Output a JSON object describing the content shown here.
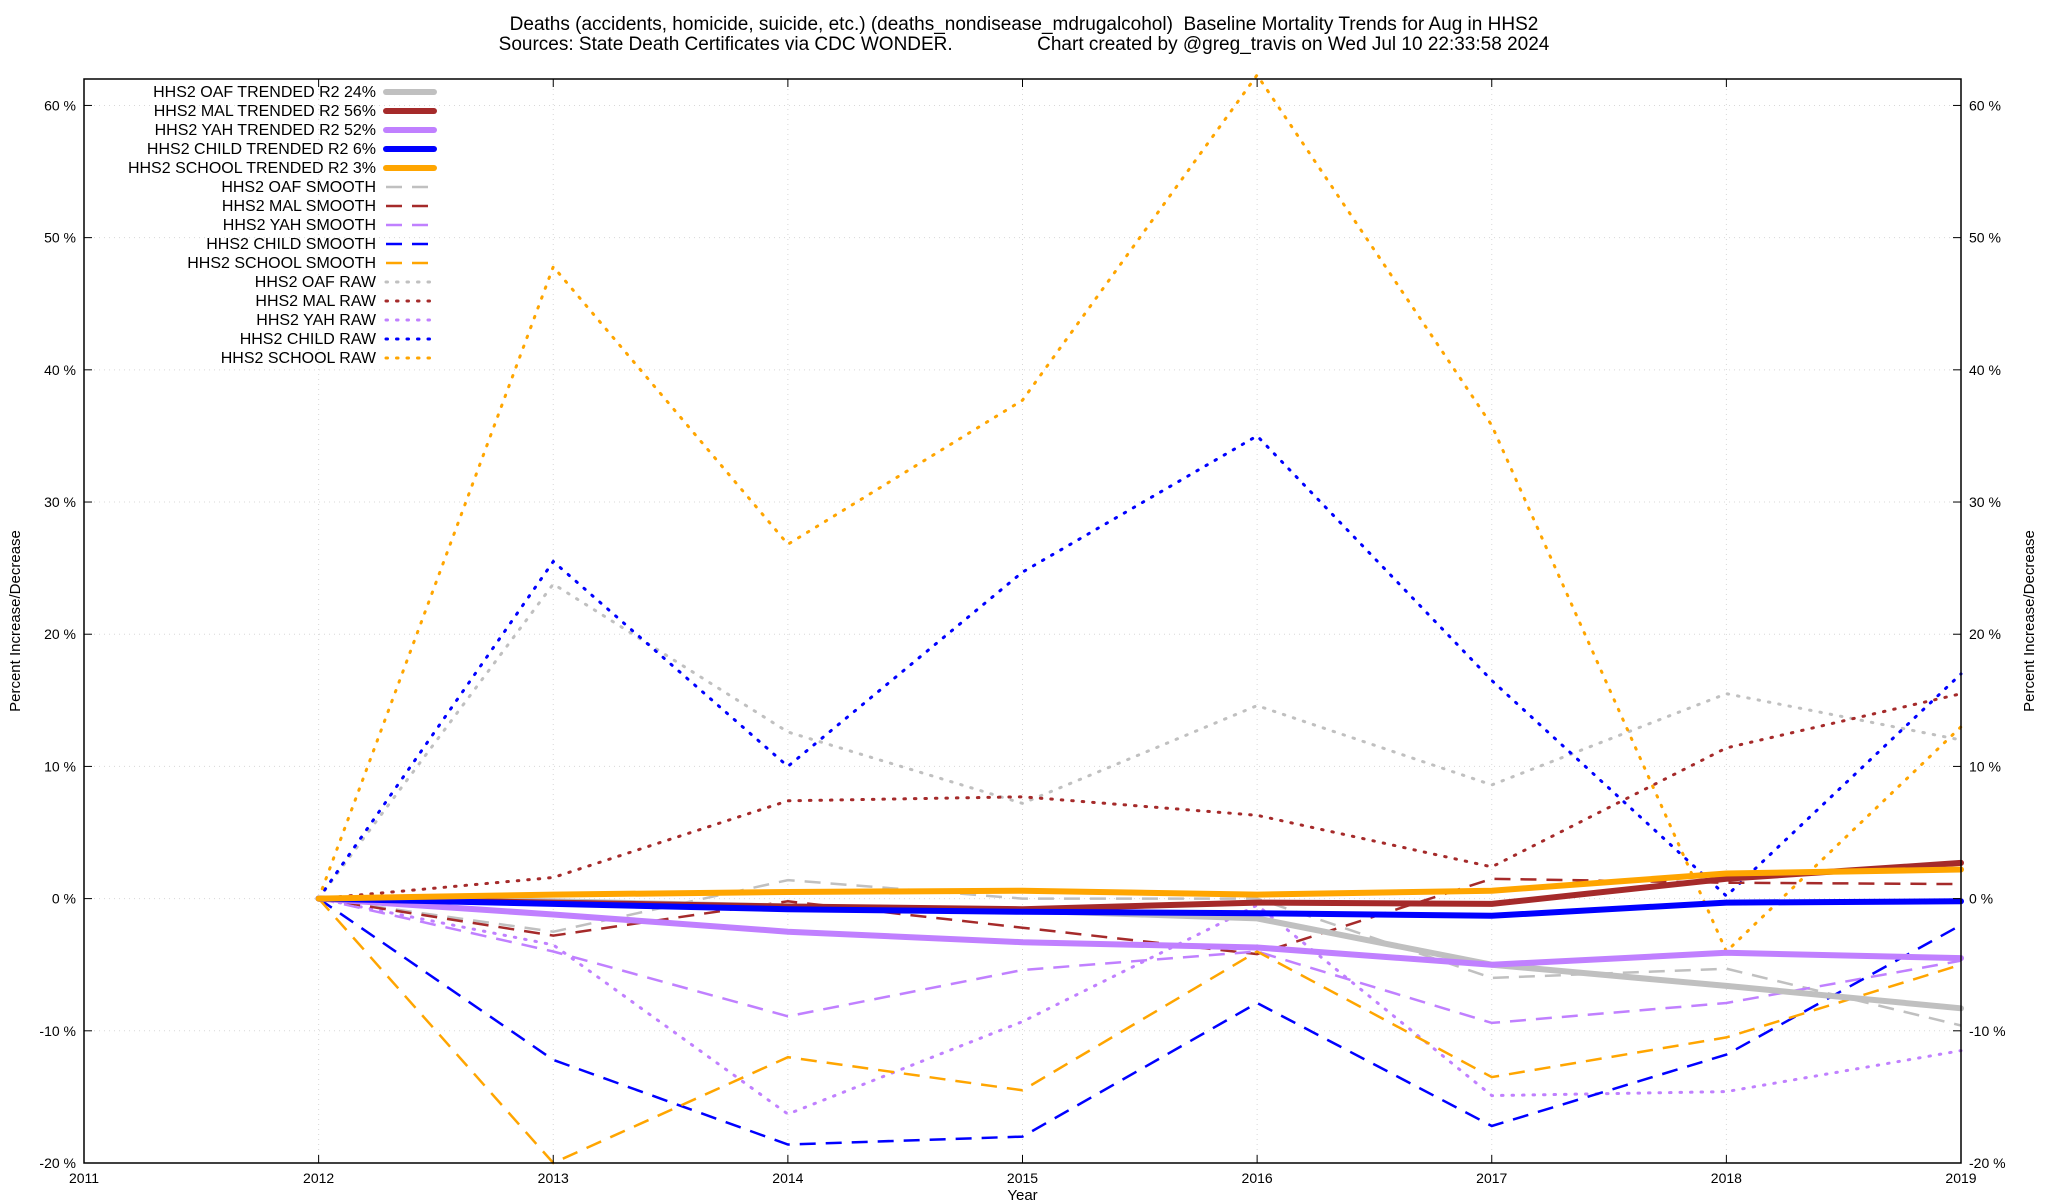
{
  "title_line1": "Deaths (accidents, homicide, suicide, etc.) (deaths_nondisease_mdrugalcohol)  Baseline Mortality Trends for Aug in HHS2",
  "title_line2": "Sources: State Death Certificates via CDC WONDER.                Chart created by @greg_travis on Wed Jul 10 22:33:58 2024",
  "chart_data": {
    "type": "line",
    "xlabel": "Year",
    "ylabel": "Percent Increase/Decrease",
    "y2label": "Percent Increase/Decrease",
    "xlim": [
      2011,
      2019
    ],
    "ylim": [
      -20,
      62
    ],
    "x_ticks": [
      2011,
      2012,
      2013,
      2014,
      2015,
      2016,
      2017,
      2018,
      2019
    ],
    "x_tick_labels": [
      "2011",
      "2012",
      "2013",
      "2014",
      "2015",
      "2016",
      "2017",
      "2018",
      "2019"
    ],
    "y_ticks": [
      -20,
      -10,
      0,
      10,
      20,
      30,
      40,
      50,
      60
    ],
    "y_tick_labels": [
      "-20 %",
      "-10 %",
      "0 %",
      "10 %",
      "20 %",
      "30 %",
      "40 %",
      "50 %",
      "60 %"
    ],
    "grid": true,
    "legend_position": "top-left",
    "x": [
      2012,
      2013,
      2014,
      2015,
      2016,
      2017,
      2018,
      2019
    ],
    "series": [
      {
        "name": "HHS2 OAF TRENDED R2  24%",
        "color": "#c0c0c0",
        "style": "solid",
        "values": [
          0,
          -0.2,
          -0.6,
          -0.9,
          -1.5,
          -5.0,
          -6.6,
          -8.3
        ]
      },
      {
        "name": "HHS2 MAL TRENDED R2  56%",
        "color": "#a52a2a",
        "style": "solid",
        "values": [
          0,
          -0.3,
          -0.6,
          -0.8,
          -0.3,
          -0.4,
          1.5,
          2.7
        ]
      },
      {
        "name": "HHS2 YAH TRENDED R2  52%",
        "color": "#c080ff",
        "style": "solid",
        "values": [
          0,
          -1.2,
          -2.5,
          -3.3,
          -3.7,
          -5.0,
          -4.1,
          -4.5
        ]
      },
      {
        "name": "HHS2 CHILD TRENDED R2   6%",
        "color": "#0000ff",
        "style": "solid",
        "values": [
          0,
          -0.4,
          -0.8,
          -1.0,
          -1.1,
          -1.3,
          -0.3,
          -0.2
        ]
      },
      {
        "name": "HHS2 SCHOOL TRENDED R2   3%",
        "color": "#ffa500",
        "style": "solid",
        "values": [
          0,
          0.3,
          0.5,
          0.6,
          0.3,
          0.6,
          1.9,
          2.2
        ]
      },
      {
        "name": "HHS2 OAF SMOOTH",
        "color": "#c0c0c0",
        "style": "dashed",
        "values": [
          0,
          -2.5,
          1.4,
          0.0,
          0.0,
          -6.0,
          -5.3,
          -9.6
        ]
      },
      {
        "name": "HHS2 MAL SMOOTH",
        "color": "#a52a2a",
        "style": "dashed",
        "values": [
          0,
          -2.8,
          -0.2,
          -2.2,
          -4.2,
          1.5,
          1.2,
          1.1
        ]
      },
      {
        "name": "HHS2 YAH SMOOTH",
        "color": "#c080ff",
        "style": "dashed",
        "values": [
          0,
          -4.0,
          -8.9,
          -5.4,
          -4.0,
          -9.4,
          -7.9,
          -4.7
        ]
      },
      {
        "name": "HHS2 CHILD SMOOTH",
        "color": "#0000ff",
        "style": "dashed",
        "values": [
          0,
          -12.2,
          -18.6,
          -18.0,
          -7.9,
          -17.2,
          -11.8,
          -2.0
        ]
      },
      {
        "name": "HHS2 SCHOOL SMOOTH",
        "color": "#ffa500",
        "style": "dashed",
        "values": [
          0,
          -20.0,
          -12.0,
          -14.5,
          -4.0,
          -13.5,
          -10.5,
          -5.0
        ]
      },
      {
        "name": "HHS2 OAF RAW",
        "color": "#c0c0c0",
        "style": "dotted",
        "values": [
          0,
          23.8,
          12.6,
          7.2,
          14.6,
          8.6,
          15.5,
          12.0
        ]
      },
      {
        "name": "HHS2 MAL RAW",
        "color": "#a52a2a",
        "style": "dotted",
        "values": [
          0,
          1.6,
          7.4,
          7.7,
          6.3,
          2.4,
          11.4,
          15.5
        ]
      },
      {
        "name": "HHS2 YAH RAW",
        "color": "#c080ff",
        "style": "dotted",
        "values": [
          0,
          -3.5,
          -16.3,
          -9.3,
          -0.5,
          -14.9,
          -14.6,
          -11.5
        ]
      },
      {
        "name": "HHS2 CHILD RAW",
        "color": "#0000ff",
        "style": "dotted",
        "values": [
          0,
          25.5,
          10.0,
          24.7,
          35.0,
          16.5,
          0.2,
          17.0
        ]
      },
      {
        "name": "HHS2 SCHOOL RAW",
        "color": "#ffa500",
        "style": "dotted",
        "values": [
          0,
          47.8,
          26.8,
          37.7,
          62.3,
          35.8,
          -4.0,
          13.0
        ]
      }
    ]
  }
}
